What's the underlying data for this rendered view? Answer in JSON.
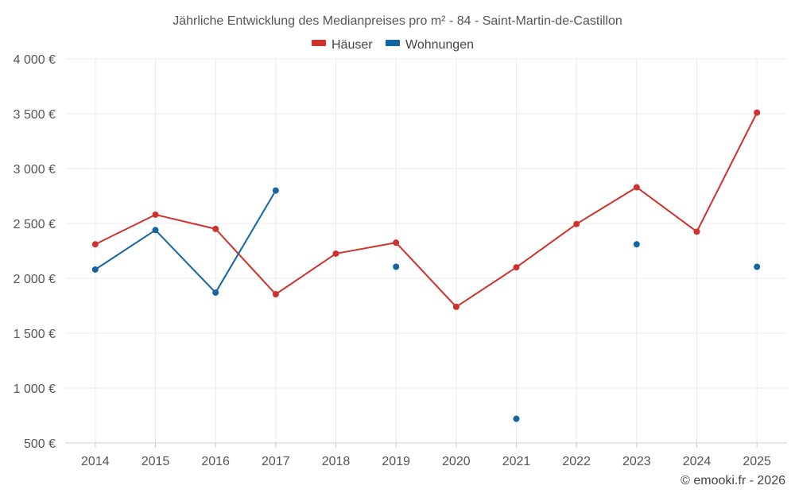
{
  "chart_data": {
    "type": "line",
    "title": "Jährliche Entwicklung des Medianpreises pro m² - 84 - Saint-Martin-de-Castillon",
    "categories": [
      "2014",
      "2015",
      "2016",
      "2017",
      "2018",
      "2019",
      "2020",
      "2021",
      "2022",
      "2023",
      "2024",
      "2025"
    ],
    "ylim": [
      500,
      4000
    ],
    "yticks": [
      500,
      1000,
      1500,
      2000,
      2500,
      3000,
      3500,
      4000
    ],
    "ytick_labels": [
      "500 €",
      "1 000 €",
      "1 500 €",
      "2 000 €",
      "2 500 €",
      "3 000 €",
      "3 500 €",
      "4 000 €"
    ],
    "xlabel": "",
    "ylabel": "",
    "grid": true,
    "legend_position": "top-center",
    "series": [
      {
        "name": "Häuser",
        "color": "#d0312d",
        "values": [
          2310,
          2580,
          2450,
          1855,
          2225,
          2325,
          1740,
          2100,
          2495,
          2830,
          2425,
          3510
        ]
      },
      {
        "name": "Wohnungen",
        "color": "#1566a0",
        "values": [
          2080,
          2440,
          1870,
          2800,
          null,
          2105,
          null,
          720,
          null,
          2310,
          null,
          2105
        ]
      }
    ]
  },
  "credit": "© emooki.fr - 2026"
}
